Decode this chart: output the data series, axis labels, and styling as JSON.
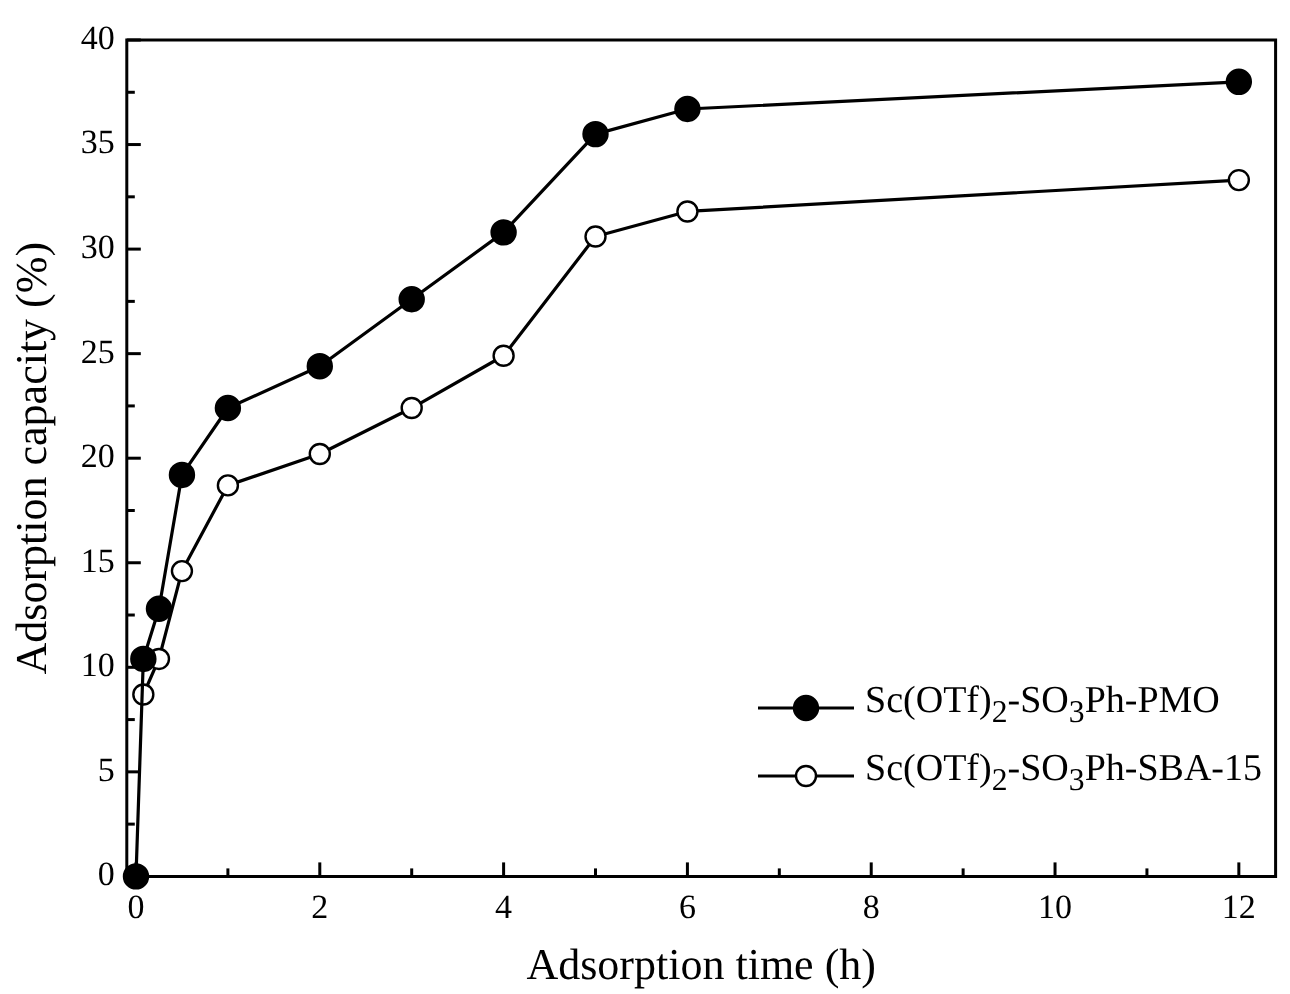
{
  "chart_data": {
    "type": "line",
    "xlabel": "Adsorption time (h)",
    "ylabel": "Adsorption capacity (%)",
    "xlim": [
      -0.1,
      12.4
    ],
    "ylim": [
      0,
      40
    ],
    "xticks": [
      0,
      {
        "value": 1,
        "label": null
      },
      2,
      {
        "value": 3,
        "label": null
      },
      4,
      {
        "value": 5,
        "label": null
      },
      6,
      {
        "value": 7,
        "label": null
      },
      8,
      {
        "value": 9,
        "label": null
      },
      10,
      {
        "value": 11,
        "label": null
      },
      12
    ],
    "yticks": [
      0,
      {
        "value": 2.5,
        "label": null
      },
      5,
      {
        "value": 7.5,
        "label": null
      },
      10,
      {
        "value": 12.5,
        "label": null
      },
      15,
      {
        "value": 17.5,
        "label": null
      },
      20,
      {
        "value": 22.5,
        "label": null
      },
      25,
      {
        "value": 27.5,
        "label": null
      },
      30,
      {
        "value": 32.5,
        "label": null
      },
      35,
      {
        "value": 37.5,
        "label": null
      },
      40
    ],
    "grid": false,
    "legend": "bottom right",
    "marker": "circle",
    "line_style": "solid",
    "series": [
      {
        "name": "Sc(OTf)$_{2}$-SO$_{3}$Ph-PMO",
        "color": "#000000",
        "x": [
          0,
          0.08,
          0.25,
          0.5,
          1,
          2,
          3,
          4,
          5,
          6,
          12
        ],
        "values": [
          0,
          10.4,
          12.8,
          19.2,
          22.4,
          24.4,
          27.6,
          30.8,
          35.5,
          36.7,
          38.0
        ]
      },
      {
        "name": "Sc(OTf)$_{2}$-SO$_{3}$Ph-SBA-15",
        "color": "#000000",
        "x": [
          0.08,
          0.25,
          0.5,
          1,
          2,
          3,
          4,
          5,
          6,
          12
        ],
        "values": [
          8.7,
          10.4,
          14.6,
          18.7,
          20.2,
          22.4,
          24.9,
          30.6,
          31.8,
          33.3
        ]
      }
    ]
  }
}
